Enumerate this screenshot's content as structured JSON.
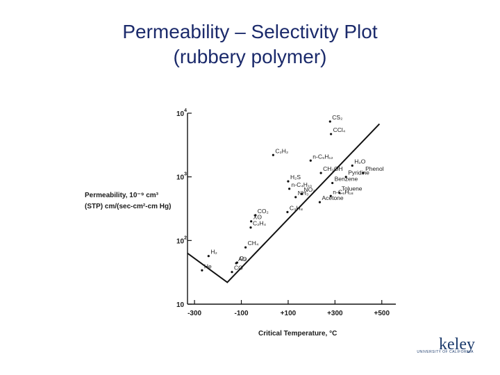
{
  "slide": {
    "title_line1": "Permeability – Selectivity Plot",
    "title_line2": "(rubbery polymer)"
  },
  "logo": {
    "text": "keley",
    "subtext": "UNIVERSITY OF CALIFORNIA"
  },
  "chart_data": {
    "type": "scatter",
    "title": "",
    "xlabel": "Critical Temperature, °C",
    "ylabel_line1": "Permeability, 10⁻⁹ cm³",
    "ylabel_line2": "(STP) cm/(sec-cm²-cm Hg)",
    "xlim": [
      -330,
      560
    ],
    "ylim_log10": [
      1,
      4
    ],
    "y_scale": "log",
    "x_ticks": [
      {
        "value": -300,
        "label": "-300"
      },
      {
        "value": -100,
        "label": "-100"
      },
      {
        "value": 100,
        "label": "+100"
      },
      {
        "value": 300,
        "label": "+300"
      },
      {
        "value": 500,
        "label": "+500"
      }
    ],
    "y_ticks": [
      {
        "value": 10,
        "base": "10",
        "exp": ""
      },
      {
        "value": 100,
        "base": "10",
        "exp": "2"
      },
      {
        "value": 1000,
        "base": "10",
        "exp": "3"
      },
      {
        "value": 10000,
        "base": "10",
        "exp": "4"
      }
    ],
    "points": [
      {
        "label": "He",
        "x": -268,
        "y": 34
      },
      {
        "label": "H₂",
        "x": -240,
        "y": 57
      },
      {
        "label": "Aʘ",
        "x": -122,
        "y": 44
      },
      {
        "label": "O₂",
        "x": -118,
        "y": 45
      },
      {
        "label": "CO",
        "x": -140,
        "y": 32
      },
      {
        "label": "CH₄",
        "x": -82,
        "y": 78
      },
      {
        "label": "C₂H₄",
        "x": -60,
        "y": 160
      },
      {
        "label": "Xʘ",
        "x": -58,
        "y": 200
      },
      {
        "label": "CO₂",
        "x": -40,
        "y": 250
      },
      {
        "label": "C₂H₂",
        "x": 36,
        "y": 2200
      },
      {
        "label": "H₂S",
        "x": 100,
        "y": 850
      },
      {
        "label": "n-C₄H₁₀",
        "x": 105,
        "y": 650
      },
      {
        "label": "NH₃",
        "x": 132,
        "y": 480
      },
      {
        "label": "NO₂",
        "x": 158,
        "y": 540
      },
      {
        "label": "C₃H₈",
        "x": 97,
        "y": 280
      },
      {
        "label": "n-C₅H₁₂",
        "x": 196,
        "y": 1800
      },
      {
        "label": "CH₃OH",
        "x": 240,
        "y": 1150
      },
      {
        "label": "H₂O",
        "x": 374,
        "y": 1500
      },
      {
        "label": "Pyridine",
        "x": 347,
        "y": 1000
      },
      {
        "label": "Phenol",
        "x": 421,
        "y": 1150
      },
      {
        "label": "Benzene",
        "x": 289,
        "y": 800
      },
      {
        "label": "Toluene",
        "x": 319,
        "y": 560
      },
      {
        "label": "n-C₆H₁₈",
        "x": 282,
        "y": 500
      },
      {
        "label": "Acetone",
        "x": 235,
        "y": 400
      },
      {
        "label": "CS₂",
        "x": 279,
        "y": 7400
      },
      {
        "label": "CCl₄",
        "x": 283,
        "y": 4700
      }
    ],
    "trend_line": [
      {
        "x": -330,
        "y": 63
      },
      {
        "x": -160,
        "y": 22
      },
      {
        "x": 490,
        "y": 6800
      }
    ]
  }
}
